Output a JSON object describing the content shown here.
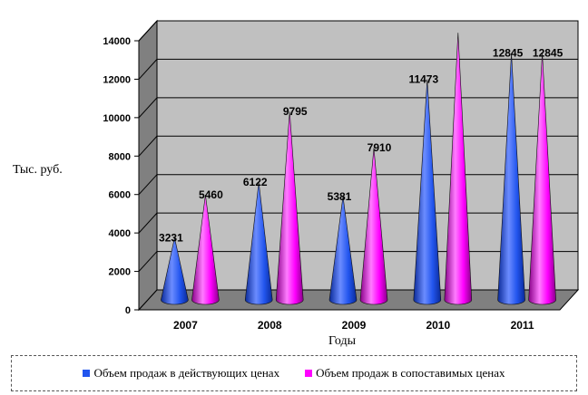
{
  "chart_data": {
    "type": "bar",
    "categories": [
      "2007",
      "2008",
      "2009",
      "2010",
      "2011"
    ],
    "series": [
      {
        "name": "Объем продаж в действующих ценах",
        "values": [
          3231,
          6122,
          5381,
          11473,
          12845
        ],
        "color": "#2255ee"
      },
      {
        "name": "Объем продаж в сопоставимых ценах",
        "values": [
          5460,
          9795,
          7910,
          13900,
          12845
        ],
        "color": "#ff00ff"
      }
    ],
    "data_labels": [
      [
        "3231",
        "6122",
        "5381",
        "11473",
        "12845"
      ],
      [
        "5460",
        "9795",
        "7910",
        "",
        "12845"
      ]
    ],
    "xlabel": "Годы",
    "ylabel": "Тыс. руб.",
    "yticks": [
      "0",
      "2000",
      "4000",
      "6000",
      "8000",
      "10000",
      "12000",
      "14000"
    ],
    "ylim": [
      0,
      14000
    ],
    "grid": true,
    "legend_position": "bottom",
    "background": "#c0c0c0"
  }
}
